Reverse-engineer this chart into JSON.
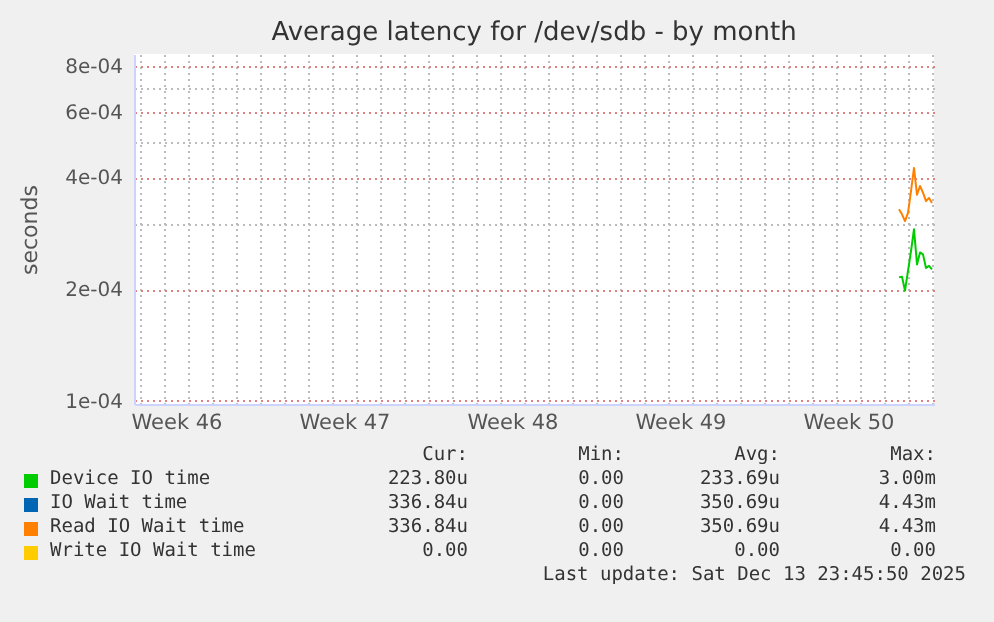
{
  "chart_data": {
    "type": "line",
    "title": "Average latency for /dev/sdb - by month",
    "ylabel": "seconds",
    "log": true,
    "grid": true,
    "legend": "bottom",
    "x": [
      "2025-12-12T15:00",
      "2025-12-12T18:00",
      "2025-12-12T21:00",
      "2025-12-13T00:00",
      "2025-12-13T03:00",
      "2025-12-13T06:00",
      "2025-12-13T09:00",
      "2025-12-13T12:00",
      "2025-12-13T15:00",
      "2025-12-13T18:00",
      "2025-12-13T21:00",
      "2025-12-14T00:00"
    ],
    "series": [
      {
        "name": "Device IO time",
        "color": "#00cc00",
        "values": [
          0.000215,
          0.000216,
          0.000198,
          0.000224,
          0.000253,
          0.00029,
          0.000233,
          0.000251,
          0.000248,
          0.000228,
          0.000231,
          0.000226
        ]
      },
      {
        "name": "IO Wait time",
        "color": "#0066b3",
        "values": [
          null,
          null,
          null,
          null,
          null,
          null,
          null,
          null,
          null,
          null,
          null,
          null
        ]
      },
      {
        "name": "Read IO Wait time",
        "color": "#ff8000",
        "values": [
          0.000328,
          0.000318,
          0.000305,
          0.000321,
          0.000367,
          0.000424,
          0.000359,
          0.000379,
          0.000364,
          0.000345,
          0.000352,
          0.000341
        ]
      },
      {
        "name": "Write IO Wait time",
        "color": "#ffcc00",
        "values": [
          null,
          null,
          null,
          null,
          null,
          null,
          null,
          null,
          null,
          null,
          null,
          null
        ]
      }
    ],
    "xlim": [
      "2025-11-10T18:00",
      "2025-12-14T02:00"
    ],
    "xticks": [
      {
        "value": "2025-11-12T12:00",
        "label": "Week 46"
      },
      {
        "value": "2025-11-19T12:00",
        "label": "Week 47"
      },
      {
        "value": "2025-11-26T12:00",
        "label": "Week 48"
      },
      {
        "value": "2025-12-03T12:00",
        "label": "Week 49"
      },
      {
        "value": "2025-12-10T12:00",
        "label": "Week 50"
      },
      {
        "value": "2025-11-11",
        "label": null
      },
      {
        "value": "2025-11-12",
        "label": null
      },
      {
        "value": "2025-11-13",
        "label": null
      },
      {
        "value": "2025-11-14",
        "label": null
      },
      {
        "value": "2025-11-15",
        "label": null
      },
      {
        "value": "2025-11-16",
        "label": null
      },
      {
        "value": "2025-11-17",
        "label": null
      },
      {
        "value": "2025-11-18",
        "label": null
      },
      {
        "value": "2025-11-19",
        "label": null
      },
      {
        "value": "2025-11-20",
        "label": null
      },
      {
        "value": "2025-11-21",
        "label": null
      },
      {
        "value": "2025-11-22",
        "label": null
      },
      {
        "value": "2025-11-23",
        "label": null
      },
      {
        "value": "2025-11-24",
        "label": null
      },
      {
        "value": "2025-11-25",
        "label": null
      },
      {
        "value": "2025-11-26",
        "label": null
      },
      {
        "value": "2025-11-27",
        "label": null
      },
      {
        "value": "2025-11-28",
        "label": null
      },
      {
        "value": "2025-11-29",
        "label": null
      },
      {
        "value": "2025-11-30",
        "label": null
      },
      {
        "value": "2025-12-01",
        "label": null
      },
      {
        "value": "2025-12-02",
        "label": null
      },
      {
        "value": "2025-12-03",
        "label": null
      },
      {
        "value": "2025-12-04",
        "label": null
      },
      {
        "value": "2025-12-05",
        "label": null
      },
      {
        "value": "2025-12-06",
        "label": null
      },
      {
        "value": "2025-12-07",
        "label": null
      },
      {
        "value": "2025-12-08",
        "label": null
      },
      {
        "value": "2025-12-09",
        "label": null
      },
      {
        "value": "2025-12-10",
        "label": null
      },
      {
        "value": "2025-12-11",
        "label": null
      },
      {
        "value": "2025-12-12",
        "label": null
      },
      {
        "value": "2025-12-13",
        "label": null
      },
      {
        "value": "2025-12-14",
        "label": null
      }
    ],
    "ylim": [
      9.8e-05,
      0.00086
    ],
    "yticks": [
      {
        "value": 0.0001,
        "label": "1e-04"
      },
      {
        "value": 0.0002,
        "label": "2e-04"
      },
      {
        "value": 0.0004,
        "label": "4e-04"
      },
      {
        "value": 0.0006,
        "label": "6e-04"
      },
      {
        "value": 0.0008,
        "label": "8e-04"
      },
      {
        "value": 0.0003,
        "label": null
      },
      {
        "value": 0.0005,
        "label": null
      },
      {
        "value": 0.0007,
        "label": null
      }
    ],
    "annotations": [
      "Cur:",
      "Min:",
      "Avg:",
      "Max:",
      "223.80u",
      "0.00",
      "233.69u",
      "3.00m",
      "336.84u",
      "0.00",
      "350.69u",
      "4.43m",
      "336.84u",
      "0.00",
      "350.69u",
      "4.43m",
      "0.00",
      "0.00",
      "0.00",
      "0.00",
      "Last update: Sat Dec 13 23:45:50 2025"
    ]
  }
}
